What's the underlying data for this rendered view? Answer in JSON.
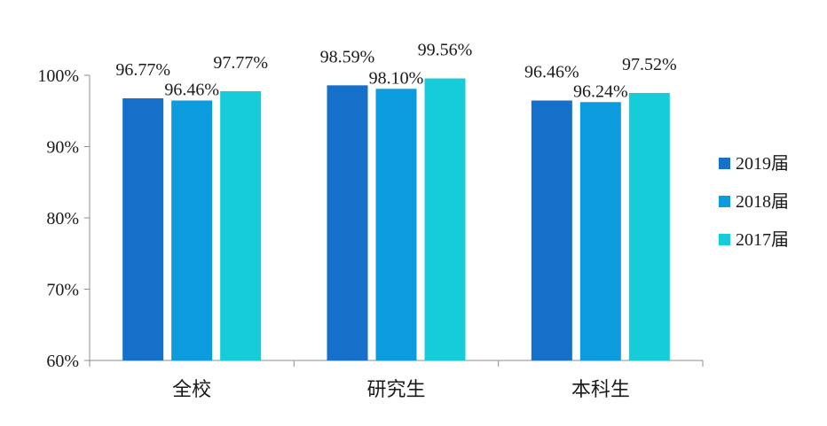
{
  "chart_data": {
    "type": "bar",
    "categories": [
      "全校",
      "研究生",
      "本科生"
    ],
    "series": [
      {
        "name": "2019届",
        "color": "#1470c8",
        "values": [
          96.77,
          98.59,
          96.46
        ],
        "labels": [
          "96.77%",
          "98.59%",
          "96.46%"
        ]
      },
      {
        "name": "2018届",
        "color": "#0c9bdc",
        "values": [
          96.46,
          98.1,
          96.24
        ],
        "labels": [
          "96.46%",
          "98.10%",
          "96.24%"
        ]
      },
      {
        "name": "2017届",
        "color": "#15ccd8",
        "values": [
          97.77,
          99.56,
          97.52
        ],
        "labels": [
          "97.77%",
          "99.56%",
          "97.52%"
        ]
      }
    ],
    "ylim": [
      60,
      100
    ],
    "yticks": [
      60,
      70,
      80,
      90,
      100
    ],
    "ytick_labels": [
      "60%",
      "70%",
      "80%",
      "90%",
      "100%"
    ],
    "title": "",
    "xlabel": "",
    "ylabel": "",
    "grid": false,
    "legend_position": "right"
  }
}
